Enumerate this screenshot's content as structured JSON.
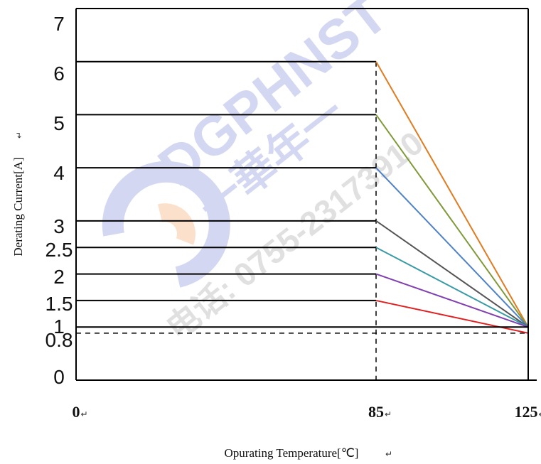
{
  "chart_data": {
    "type": "line",
    "title": "",
    "xlabel": "Opurating Temperature[℃]",
    "ylabel": "Derating Current[A]",
    "ylim": [
      0,
      7
    ],
    "x_ticks": [
      "0",
      "85",
      "125"
    ],
    "y_ticks": [
      "0",
      "0.8",
      "1",
      "1.5",
      "2",
      "2.5",
      "3",
      "4",
      "5",
      "6",
      "7"
    ],
    "grid": true,
    "dashed_reference": {
      "x": 85,
      "y": 0.8
    },
    "series": [
      {
        "color": "#e07b20",
        "points": [
          [
            0,
            6
          ],
          [
            85,
            6
          ],
          [
            125,
            1
          ]
        ]
      },
      {
        "color": "#7f9a3a",
        "points": [
          [
            0,
            5
          ],
          [
            85,
            5
          ],
          [
            125,
            1
          ]
        ]
      },
      {
        "color": "#4f81c8",
        "points": [
          [
            0,
            4
          ],
          [
            85,
            4
          ],
          [
            125,
            1
          ]
        ]
      },
      {
        "color": "#555555",
        "points": [
          [
            0,
            3
          ],
          [
            85,
            3
          ],
          [
            125,
            1
          ]
        ]
      },
      {
        "color": "#3a9aa5",
        "points": [
          [
            0,
            2.5
          ],
          [
            85,
            2.5
          ],
          [
            125,
            1
          ]
        ]
      },
      {
        "color": "#8040b0",
        "points": [
          [
            0,
            2
          ],
          [
            85,
            2
          ],
          [
            125,
            1
          ]
        ]
      },
      {
        "color": "#e02020",
        "points": [
          [
            0,
            1.5
          ],
          [
            85,
            1.5
          ],
          [
            125,
            0.8
          ]
        ]
      },
      {
        "color": "#000000",
        "points": [
          [
            0,
            1
          ],
          [
            85,
            1
          ],
          [
            125,
            1
          ]
        ]
      }
    ]
  },
  "watermark": {
    "brand": "DGPHNST",
    "chinese": "一華年一",
    "phone": "电话: 0755-23173910"
  },
  "return_mark": "↵"
}
